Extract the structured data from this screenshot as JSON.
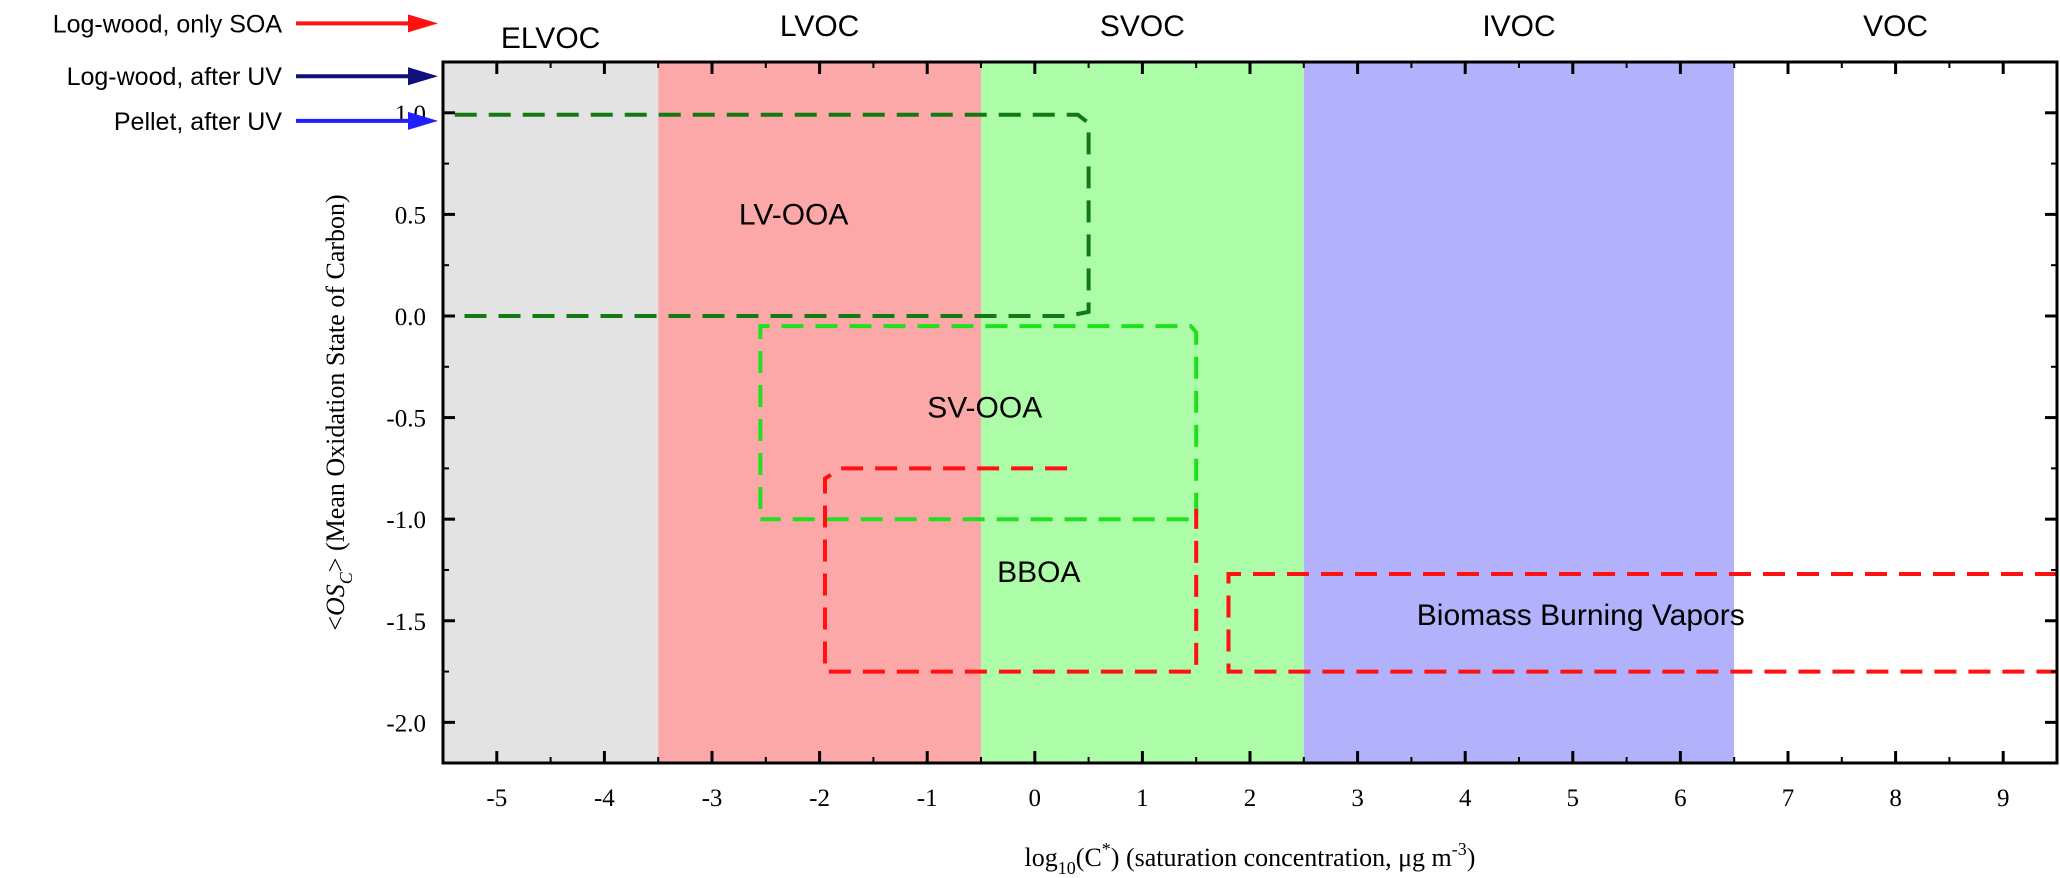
{
  "chart_data": {
    "type": "area",
    "x_axis": {
      "label_main": "log",
      "label_sub": "10",
      "label_c": "(C",
      "label_star": "*",
      "label_rest": ") (saturation concentration, μg m",
      "label_exp": "-3",
      "label_close": ")",
      "range": [
        -5.5,
        9.5
      ],
      "ticks": [
        -5,
        -4,
        -3,
        -2,
        -1,
        0,
        1,
        2,
        3,
        4,
        5,
        6,
        7,
        8,
        9
      ],
      "tick_labels": [
        "-5",
        "-4",
        "-3",
        "-2",
        "-1",
        "0",
        "1",
        "2",
        "3",
        "4",
        "5",
        "6",
        "7",
        "8",
        "9"
      ]
    },
    "y_axis": {
      "label_pre": "<",
      "label_os": "OS",
      "label_sub": "C",
      "label_post": ">",
      "label_rest": " (Mean Oxidation State of Carbon)",
      "range": [
        -2.2,
        1.25
      ],
      "ticks": [
        -2.0,
        -1.5,
        -1.0,
        -0.5,
        0.0,
        0.5,
        1.0
      ],
      "tick_labels": [
        "-2.0",
        "-1.5",
        "-1.0",
        "-0.5",
        "0.0",
        "0.5",
        "1.0"
      ]
    },
    "volatility_bands": [
      {
        "label": "ELVOC",
        "x_from": -5.5,
        "x_to": -3.5,
        "color": "#e3e3e3"
      },
      {
        "label": "LVOC",
        "x_from": -3.5,
        "x_to": -0.5,
        "color": "#fca8a8"
      },
      {
        "label": "SVOC",
        "x_from": -0.5,
        "x_to": 2.5,
        "color": "#acfca8"
      },
      {
        "label": "IVOC",
        "x_from": 2.5,
        "x_to": 6.5,
        "color": "#b2b2fc"
      },
      {
        "label": "VOC",
        "x_from": 6.5,
        "x_to": 9.5,
        "color": "#ffffff"
      }
    ],
    "regions": [
      {
        "label": "LV-OOA",
        "color": "#137a13",
        "label_x": -2.75,
        "label_y": 0.45,
        "path": [
          [
            -5.3,
            0.0
          ],
          [
            0.3,
            0.0
          ],
          [
            0.5,
            0.02
          ],
          [
            0.5,
            0.95
          ],
          [
            0.4,
            0.99
          ],
          [
            -5.5,
            0.99
          ]
        ]
      },
      {
        "label": "SV-OOA",
        "color": "#1fe01f",
        "label_x": -1.0,
        "label_y": -0.5,
        "path": [
          [
            -2.55,
            -0.95
          ],
          [
            -2.55,
            -0.05
          ],
          [
            1.45,
            -0.05
          ],
          [
            1.5,
            -0.08
          ],
          [
            1.5,
            -1.0
          ],
          [
            -2.55,
            -1.0
          ]
        ]
      },
      {
        "label": "BBOA",
        "color": "#ff1111",
        "label_x": -0.35,
        "label_y": -1.31,
        "path": [
          [
            0.3,
            -0.75
          ],
          [
            -1.8,
            -0.75
          ],
          [
            -1.95,
            -0.8
          ],
          [
            -1.95,
            -1.75
          ],
          [
            1.5,
            -1.75
          ],
          [
            1.5,
            -0.95
          ]
        ]
      },
      {
        "label": "Biomass Burning Vapors",
        "color": "#ff1111",
        "label_x": 3.55,
        "label_y": -1.52,
        "path": [
          [
            9.5,
            -1.27
          ],
          [
            1.8,
            -1.27
          ],
          [
            1.8,
            -1.75
          ],
          [
            9.5,
            -1.75
          ]
        ]
      }
    ],
    "legend": {
      "placement": "top-left",
      "items": [
        {
          "label": "Log-wood, only SOA",
          "color": "#ff1111",
          "y": 1.44
        },
        {
          "label": "Log-wood, after UV",
          "color": "#10107a",
          "y": 1.18
        },
        {
          "label": "Pellet, after UV",
          "color": "#1f1fff",
          "y": 0.96
        }
      ]
    },
    "grid": false
  }
}
